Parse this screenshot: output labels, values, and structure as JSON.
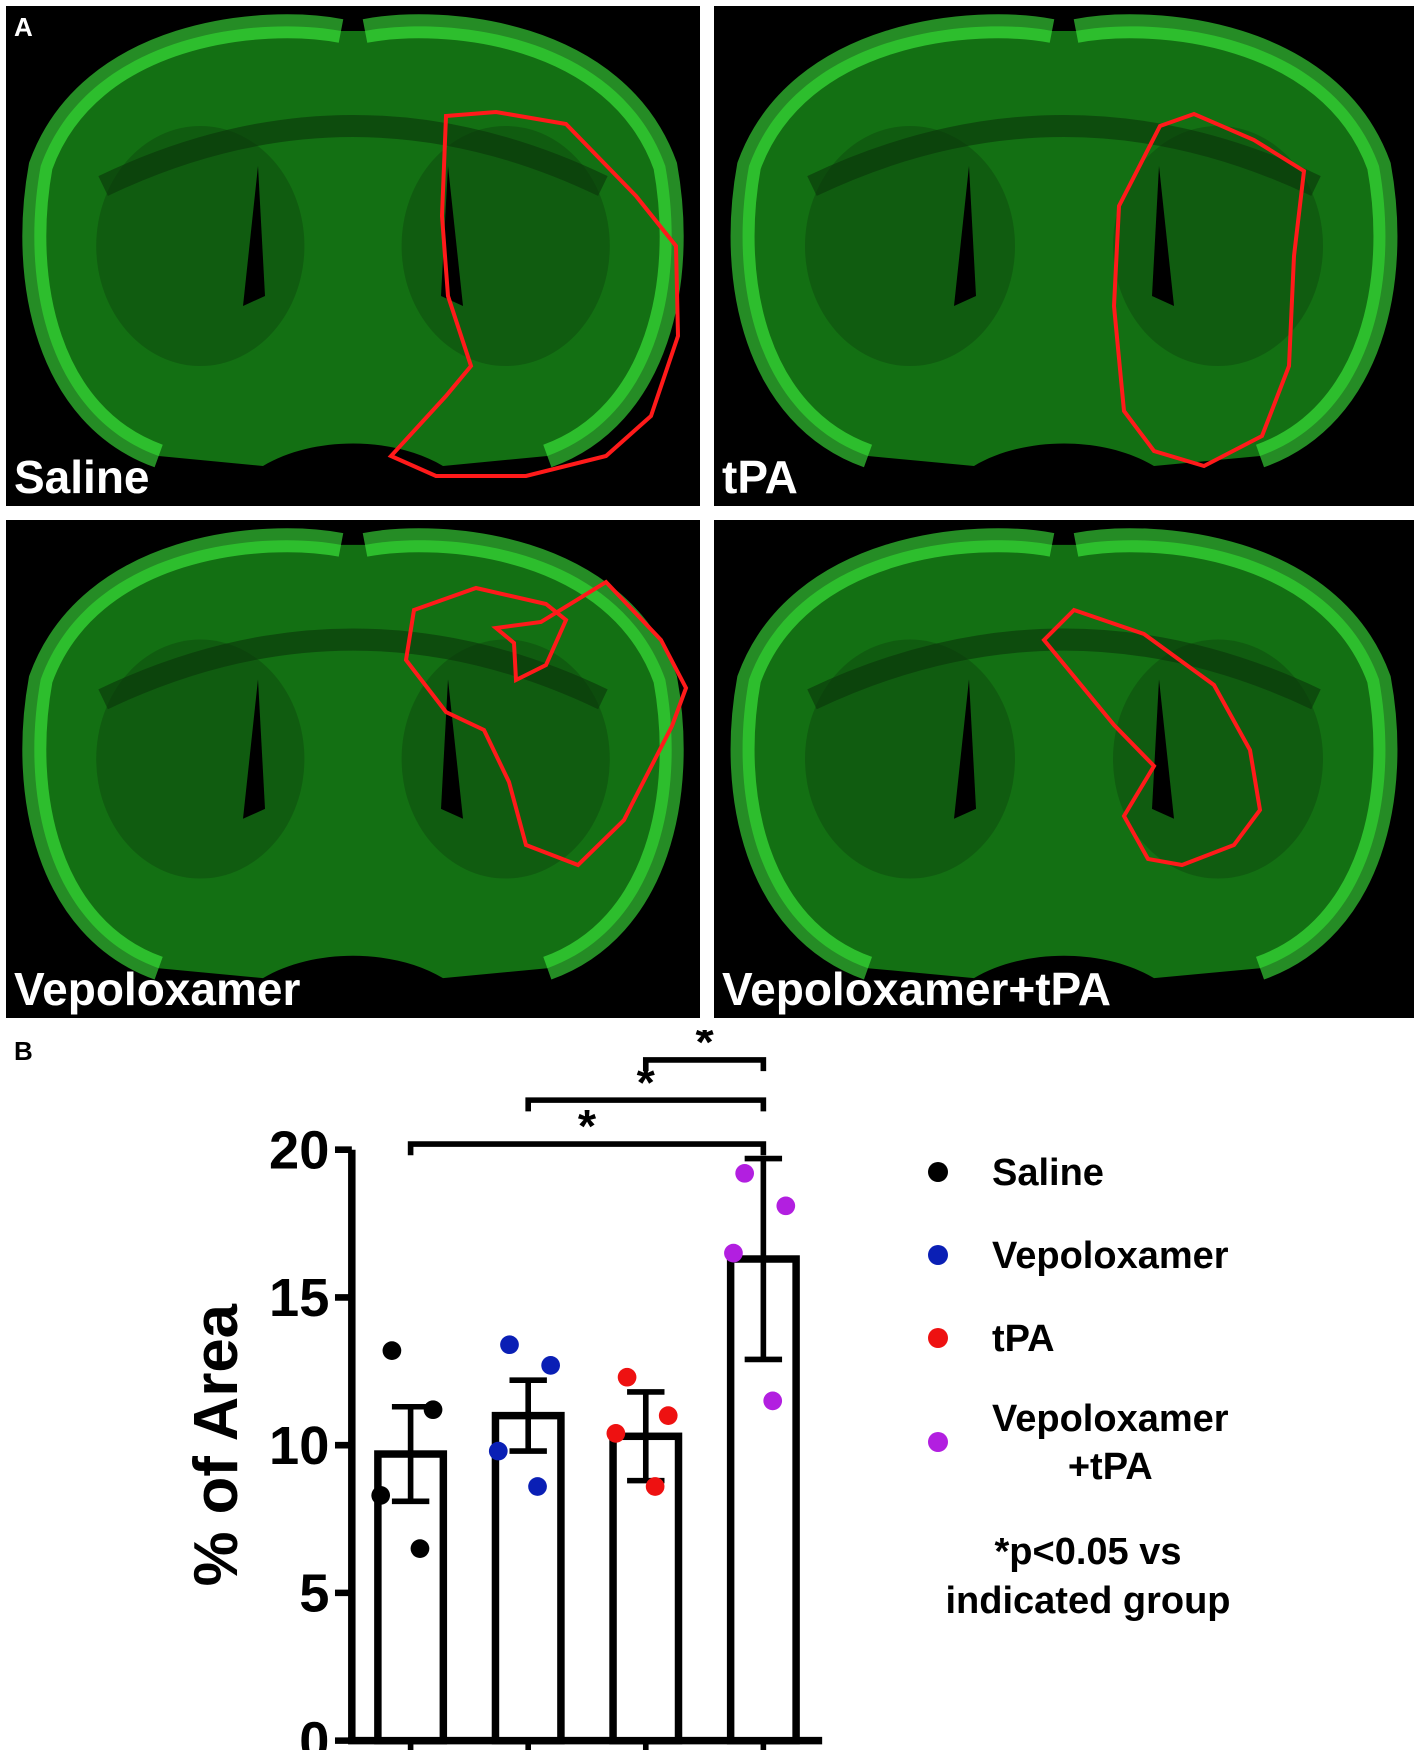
{
  "panel_a": {
    "letter": "A",
    "images": [
      {
        "label": "Saline"
      },
      {
        "label": "tPA"
      },
      {
        "label": "Vepoloxamer"
      },
      {
        "label": "Vepoloxamer+tPA"
      }
    ],
    "tissue_color": "#22cc22",
    "outline_color": "#ff1a1a"
  },
  "panel_b": {
    "letter": "B",
    "legend": [
      {
        "label": "Saline",
        "color": "#000000"
      },
      {
        "label": "Vepoloxamer",
        "color": "#0a1fb5"
      },
      {
        "label": "tPA",
        "color": "#ee1111"
      },
      {
        "label": "Vepoloxamer\n+tPA",
        "color": "#b21fe0"
      }
    ],
    "note": "*p<0.05 vs\nindicated group"
  },
  "chart_data": {
    "type": "bar",
    "categories": [
      "Saline",
      "Vepoloxamer",
      "tPA",
      "Vepoloxamer+tPA"
    ],
    "values": [
      9.7,
      11.0,
      10.3,
      16.3
    ],
    "error": [
      1.6,
      1.2,
      1.5,
      3.4
    ],
    "points": [
      [
        13.2,
        11.2,
        8.3,
        6.5
      ],
      [
        13.4,
        12.7,
        9.8,
        8.6
      ],
      [
        12.3,
        11.0,
        10.4,
        8.6
      ],
      [
        19.2,
        18.1,
        16.5,
        11.5
      ]
    ],
    "colors": [
      "#000000",
      "#0a1fb5",
      "#ee1111",
      "#b21fe0"
    ],
    "ylabel": "% of Area",
    "yticks": [
      0,
      5,
      10,
      15,
      20
    ],
    "ylim": [
      0,
      20
    ],
    "significance": [
      {
        "from": 0,
        "to": 3,
        "label": "*"
      },
      {
        "from": 1,
        "to": 3,
        "label": "*"
      },
      {
        "from": 2,
        "to": 3,
        "label": "*"
      }
    ]
  }
}
